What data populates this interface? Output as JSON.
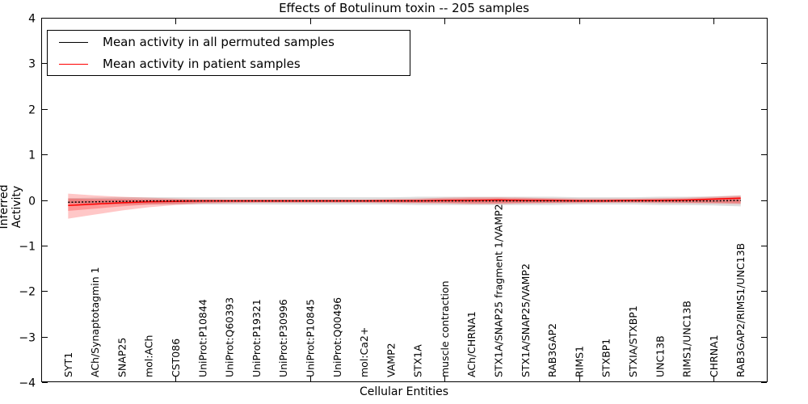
{
  "title": "Effects of Botulinum toxin -- 205 samples",
  "axes": {
    "xlabel": "Cellular Entities",
    "ylabel": "Inferred Activity",
    "y_tick_labels": [
      "−4",
      "−3",
      "−2",
      "−1",
      "0",
      "1",
      "2",
      "3",
      "4"
    ]
  },
  "legend": {
    "entries": [
      {
        "label": "Mean activity in all permuted samples",
        "color": "#000000"
      },
      {
        "label": "Mean activity in patient samples",
        "color": "#ff0000"
      }
    ]
  },
  "chart_data": {
    "type": "line",
    "title": "Effects of Botulinum toxin -- 205 samples",
    "xlabel": "Cellular Entities",
    "ylabel": "Inferred Activity",
    "ylim": [
      -4,
      4
    ],
    "xlim": [
      0,
      27
    ],
    "x_major_ticks": [
      5,
      10,
      15,
      20,
      25
    ],
    "y_major_ticks": [
      -4,
      -3,
      -2,
      -1,
      0,
      1,
      2,
      3,
      4
    ],
    "grid": false,
    "legend_position": "upper left",
    "categories": [
      "SYT1",
      "ACh/Synaptotagmin 1",
      "SNAP25",
      "mol:ACh",
      "CST086",
      "UniProt:P10844",
      "UniProt:Q60393",
      "UniProt:P19321",
      "UniProt:P30996",
      "UniProt:P10845",
      "UniProt:Q00496",
      "mol:Ca2+",
      "VAMP2",
      "STX1A",
      "muscle contraction",
      "ACh/CHRNA1",
      "STX1A/SNAP25 fragment 1/VAMP2",
      "STX1A/SNAP25/VAMP2",
      "RAB3GAP2",
      "RIMS1",
      "STXBP1",
      "STXIA/STXBP1",
      "UNC13B",
      "RIMS1/UNC13B",
      "CHRNA1",
      "RAB3GAP2/RIMS1/UNC13B"
    ],
    "series": [
      {
        "name": "Mean activity in all permuted samples",
        "color": "#000000",
        "line_style": "dotted",
        "values": [
          -0.05,
          -0.04,
          -0.03,
          -0.02,
          -0.02,
          -0.02,
          -0.02,
          -0.02,
          -0.02,
          -0.02,
          -0.02,
          -0.02,
          -0.02,
          -0.02,
          -0.02,
          -0.02,
          -0.02,
          -0.02,
          -0.02,
          -0.02,
          -0.02,
          -0.02,
          -0.02,
          -0.02,
          -0.02,
          -0.01
        ]
      },
      {
        "name": "Mean activity in patient samples",
        "color": "#ff0000",
        "line_style": "solid",
        "values": [
          -0.12,
          -0.09,
          -0.06,
          -0.04,
          -0.03,
          -0.02,
          -0.02,
          -0.02,
          -0.02,
          -0.02,
          -0.02,
          -0.02,
          -0.02,
          -0.02,
          -0.01,
          -0.01,
          0.0,
          -0.01,
          -0.01,
          -0.02,
          -0.02,
          -0.01,
          -0.01,
          0.0,
          0.02,
          0.04
        ]
      }
    ],
    "bands": [
      {
        "name": "permuted-sample-range",
        "color": "rgba(120,120,120,0.25)",
        "upper": [
          0.04,
          0.05,
          0.06,
          0.06,
          0.06,
          0.06,
          0.06,
          0.06,
          0.06,
          0.06,
          0.06,
          0.06,
          0.06,
          0.07,
          0.07,
          0.07,
          0.07,
          0.07,
          0.07,
          0.06,
          0.06,
          0.06,
          0.07,
          0.07,
          0.08,
          0.1
        ],
        "lower": [
          -0.08,
          -0.09,
          -0.1,
          -0.1,
          -0.1,
          -0.1,
          -0.1,
          -0.1,
          -0.1,
          -0.1,
          -0.1,
          -0.1,
          -0.1,
          -0.11,
          -0.11,
          -0.11,
          -0.11,
          -0.11,
          -0.11,
          -0.1,
          -0.1,
          -0.1,
          -0.11,
          -0.11,
          -0.12,
          -0.14
        ]
      },
      {
        "name": "patient-sample-range-outer",
        "color": "rgba(255,0,0,0.22)",
        "upper": [
          0.14,
          0.1,
          0.07,
          0.05,
          0.03,
          0.02,
          0.01,
          0.01,
          0.01,
          0.01,
          0.01,
          0.01,
          0.02,
          0.03,
          0.05,
          0.06,
          0.06,
          0.05,
          0.04,
          0.03,
          0.03,
          0.03,
          0.04,
          0.05,
          0.07,
          0.1
        ],
        "lower": [
          -0.41,
          -0.32,
          -0.23,
          -0.16,
          -0.11,
          -0.08,
          -0.07,
          -0.06,
          -0.06,
          -0.06,
          -0.06,
          -0.06,
          -0.07,
          -0.07,
          -0.08,
          -0.09,
          -0.09,
          -0.08,
          -0.07,
          -0.07,
          -0.06,
          -0.06,
          -0.07,
          -0.07,
          -0.08,
          -0.09
        ]
      },
      {
        "name": "patient-sample-range-inner",
        "color": "rgba(255,0,0,0.25)",
        "upper": [
          0.03,
          0.02,
          0.02,
          0.01,
          0.01,
          0.0,
          0.0,
          0.0,
          0.0,
          0.0,
          0.0,
          0.0,
          0.01,
          0.01,
          0.02,
          0.03,
          0.03,
          0.03,
          0.02,
          0.01,
          0.01,
          0.01,
          0.02,
          0.02,
          0.04,
          0.06
        ],
        "lower": [
          -0.24,
          -0.19,
          -0.14,
          -0.1,
          -0.08,
          -0.06,
          -0.05,
          -0.05,
          -0.05,
          -0.05,
          -0.05,
          -0.05,
          -0.05,
          -0.06,
          -0.06,
          -0.07,
          -0.07,
          -0.06,
          -0.06,
          -0.05,
          -0.05,
          -0.05,
          -0.05,
          -0.06,
          -0.06,
          -0.07
        ]
      }
    ]
  }
}
